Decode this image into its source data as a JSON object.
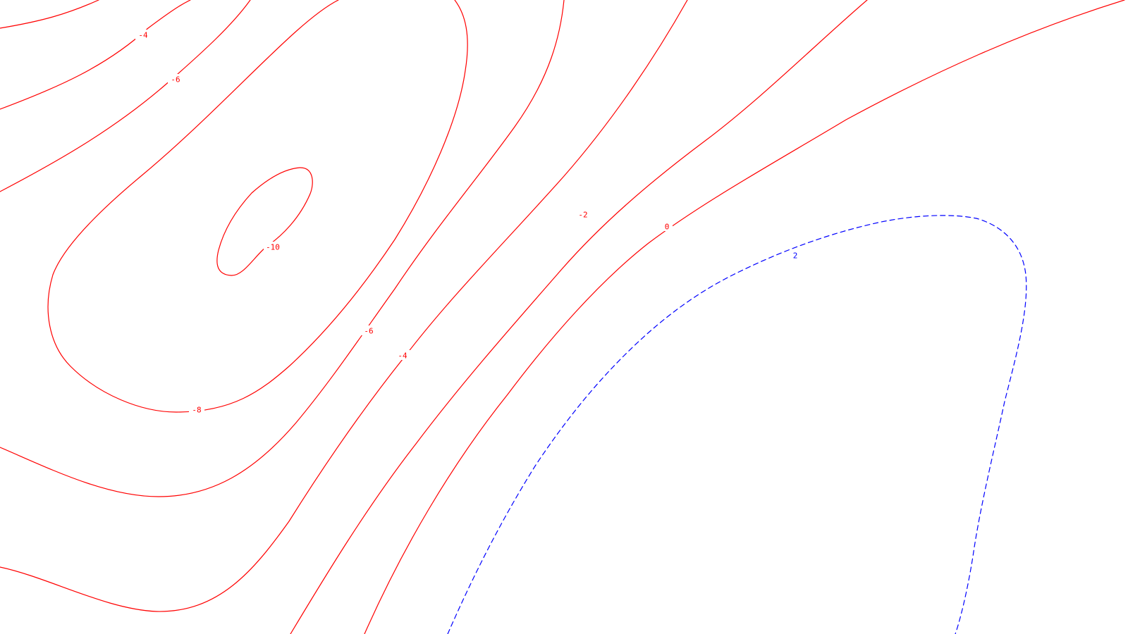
{
  "map": {
    "colors": {
      "negative": "#ff0000",
      "positive": "#0000ff",
      "background": "#ffffff"
    },
    "line_styles": {
      "negative": "solid",
      "positive": "dashed"
    },
    "contours": [
      {
        "id": "c-neg4-top",
        "level": -4,
        "label": "-4",
        "color_key": "negative"
      },
      {
        "id": "c-neg6-top",
        "level": -6,
        "label": "-6",
        "color_key": "negative"
      },
      {
        "id": "c-neg8-outer",
        "level": -8,
        "label": "-8",
        "color_key": "negative"
      },
      {
        "id": "c-neg10-core",
        "level": -10,
        "label": "-10",
        "color_key": "negative"
      },
      {
        "id": "c-neg6-lower",
        "level": -6,
        "label": "-6",
        "color_key": "negative"
      },
      {
        "id": "c-neg4-lower",
        "level": -4,
        "label": "-4",
        "color_key": "negative"
      },
      {
        "id": "c-neg2",
        "level": -2,
        "label": "-2",
        "color_key": "negative"
      },
      {
        "id": "c-zero",
        "level": 0,
        "label": "0",
        "color_key": "negative"
      },
      {
        "id": "c-pos2",
        "level": 2,
        "label": "2",
        "color_key": "positive"
      }
    ]
  }
}
